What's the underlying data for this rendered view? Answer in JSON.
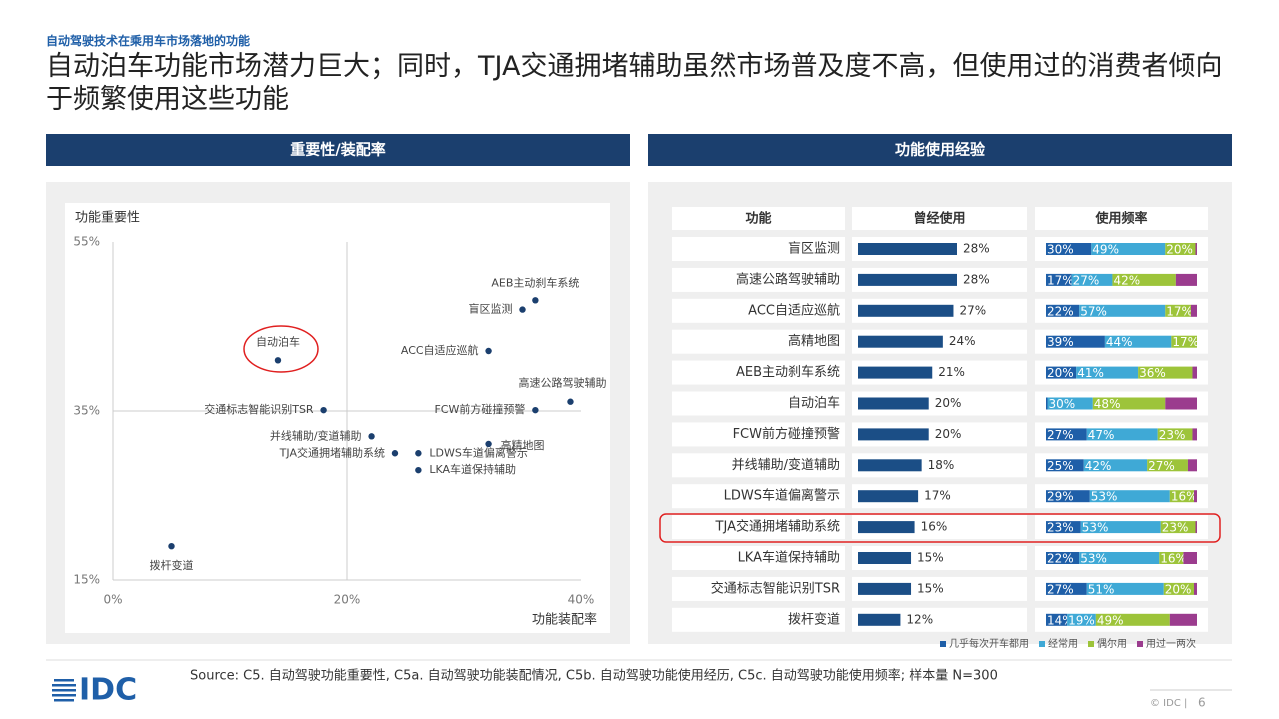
{
  "header": {
    "kicker": "自动驾驶技术在乘用车市场落地的功能",
    "title": "自动泊车功能市场潜力巨大；同时，TJA交通拥堵辅助虽然市场普及度不高，但使用过的消费者倾向于频繁使用这些功能"
  },
  "chart_data": [
    {
      "type": "scatter",
      "panel_title": "重要性/装配率",
      "y_label": "功能重要性",
      "x_label": "功能装配率",
      "point_labels": [
        "AEB主动刹车系统",
        "盲区监测",
        "自动泊车",
        "ACC自适应巡航",
        "高速公路驾驶辅助",
        "交通标志智能识别TSR",
        "FCW前方碰撞预警",
        "并线辅助/变道辅助",
        "高精地图",
        "TJA交通拥堵辅助系统",
        "LDWS车道偏离警示",
        "LKA车道保持辅助",
        "拨杆变道"
      ],
      "x": [
        36.1,
        35.0,
        14.1,
        32.1,
        39.1,
        18.0,
        36.1,
        22.1,
        32.1,
        24.1,
        26.1,
        26.1,
        5.0
      ],
      "values": [
        48.1,
        47.0,
        41.0,
        42.1,
        36.1,
        35.1,
        35.1,
        32.0,
        31.1,
        30.0,
        30.0,
        28.0,
        19.0
      ],
      "color": "#1b3f6e",
      "xlim": [
        0,
        40
      ],
      "xticks": [
        {
          "value": 0,
          "label": "0%"
        },
        {
          "value": 20,
          "label": "20%"
        },
        {
          "value": 40,
          "label": "40%"
        }
      ],
      "ylim": [
        15,
        55
      ],
      "yticks": [
        {
          "value": 15,
          "label": "15%"
        },
        {
          "value": 35,
          "label": "35%"
        },
        {
          "value": 55,
          "label": "55%"
        }
      ]
    },
    {
      "type": "bar_table",
      "panel_title": "功能使用经验",
      "columns": [
        "功能",
        "曾经使用",
        "使用频率"
      ],
      "categories": [
        "盲区监测",
        "高速公路驾驶辅助",
        "ACC自适应巡航",
        "高精地图",
        "AEB主动刹车系统",
        "自动泊车",
        "FCW前方碰撞预警",
        "并线辅助/变道辅助",
        "LDWS车道偏离警示",
        "TJA交通拥堵辅助系统",
        "LKA车道保持辅助",
        "交通标志智能识别TSR",
        "拨杆变道"
      ],
      "usage": {
        "color": "#1b4e86",
        "values": [
          28,
          28,
          27,
          24,
          21,
          20,
          20,
          18,
          17,
          16,
          15,
          15,
          12
        ],
        "value_labels": [
          "28%",
          "28%",
          "27%",
          "24%",
          "21%",
          "20%",
          "20%",
          "18%",
          "17%",
          "16%",
          "15%",
          "15%",
          "12%"
        ]
      },
      "series": [
        {
          "name": "几乎每次开车都用",
          "color": "#1f5fa8",
          "values": [
            30,
            17,
            22,
            39,
            20,
            1,
            27,
            25,
            29,
            23,
            22,
            27,
            14
          ],
          "value_labels": [
            "30%",
            "17%",
            "22%",
            "39%",
            "20%",
            "1%",
            "27%",
            "25%",
            "29%",
            "23%",
            "22%",
            "27%",
            "14%"
          ]
        },
        {
          "name": "经常用",
          "color": "#3fa9d6",
          "values": [
            49,
            27,
            57,
            44,
            41,
            30,
            47,
            42,
            53,
            53,
            53,
            51,
            19
          ],
          "value_labels": [
            "49%",
            "27%",
            "57%",
            "44%",
            "41%",
            "30%",
            "47%",
            "42%",
            "53%",
            "53%",
            "53%",
            "51%",
            "19%"
          ]
        },
        {
          "name": "偶尔用",
          "color": "#9dc43a",
          "values": [
            20,
            42,
            17,
            17,
            36,
            48,
            23,
            27,
            16,
            23,
            16,
            20,
            49
          ],
          "value_labels": [
            "20%",
            "42%",
            "17%",
            "17%",
            "36%",
            "48%",
            "23%",
            "27%",
            "16%",
            "23%",
            "16%",
            "20%",
            "49%"
          ]
        },
        {
          "name": "用过一两次",
          "color": "#9b3c8e",
          "values": [
            1,
            14,
            4,
            0,
            3,
            21,
            3,
            6,
            2,
            1,
            9,
            2,
            18
          ],
          "value_labels": [
            null,
            null,
            null,
            null,
            null,
            null,
            null,
            null,
            null,
            null,
            null,
            null,
            null
          ]
        }
      ]
    }
  ],
  "footer": {
    "source": "Source: C5. 自动驾驶功能重要性, C5a. 自动驾驶功能装配情况, C5b. 自动驾驶功能使用经历, C5c. 自动驾驶功能使用频率; 样本量 N=300",
    "logo": "IDC",
    "copyright": "© IDC |",
    "page": "6"
  }
}
